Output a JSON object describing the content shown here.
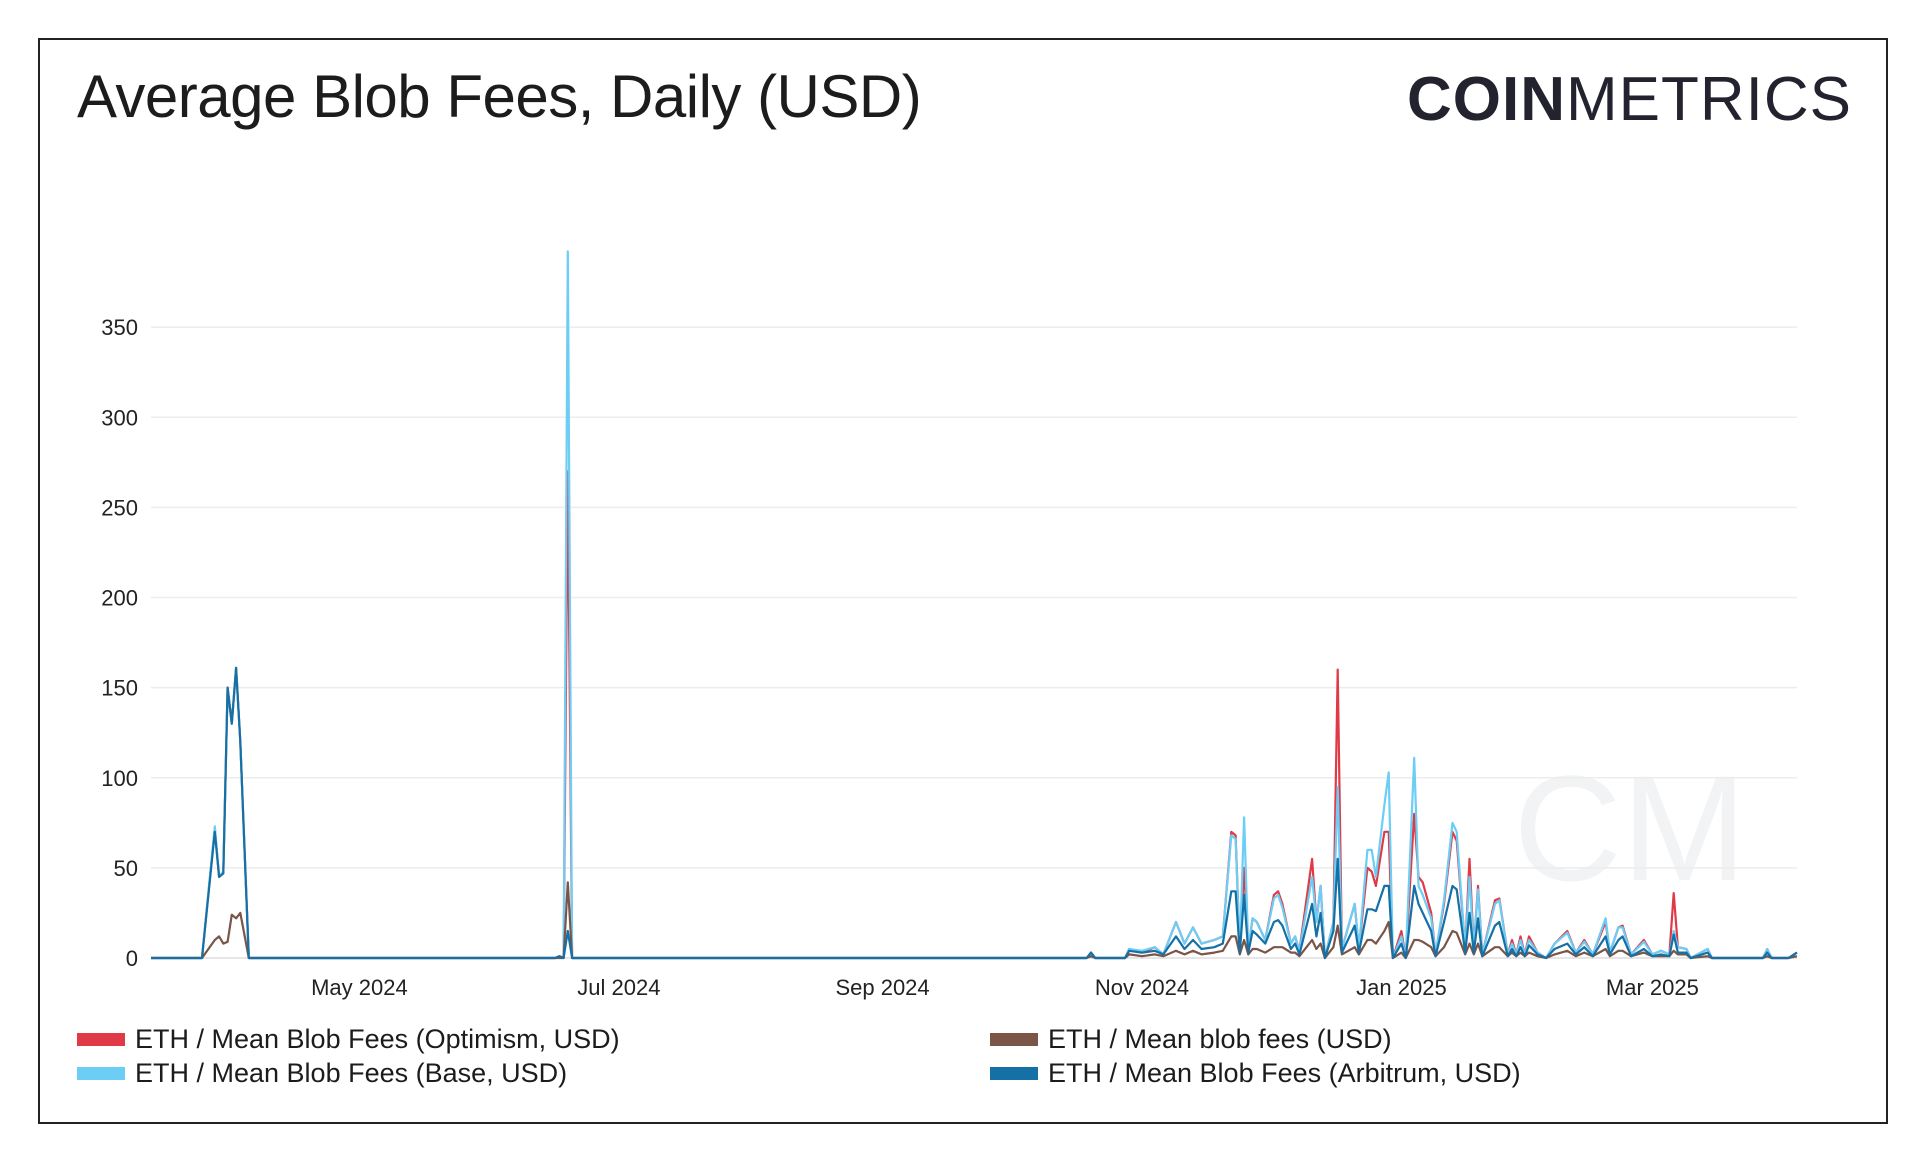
{
  "title": "Average Blob Fees, Daily (USD)",
  "logo": {
    "bold": "COIN",
    "light": "METRICS",
    "watermark": "CM"
  },
  "chart_data": {
    "type": "line",
    "title": "Average Blob Fees, Daily (USD)",
    "xlabel": "",
    "ylabel": "",
    "xlim": [
      "2024-03-13",
      "2025-04-04"
    ],
    "ylim": [
      0,
      400
    ],
    "yticks": [
      0,
      50,
      100,
      150,
      200,
      250,
      300,
      350
    ],
    "xticks": [
      {
        "date": "2024-05-01",
        "label": "May 2024"
      },
      {
        "date": "2024-07-01",
        "label": "Jul 2024"
      },
      {
        "date": "2024-09-01",
        "label": "Sep 2024"
      },
      {
        "date": "2024-11-01",
        "label": "Nov 2024"
      },
      {
        "date": "2025-01-01",
        "label": "Jan 2025"
      },
      {
        "date": "2025-03-01",
        "label": "Mar 2025"
      }
    ],
    "grid": true,
    "legend_position": "bottom",
    "x": [
      "2024-03-13",
      "2024-03-25",
      "2024-03-28",
      "2024-03-29",
      "2024-03-30",
      "2024-03-31",
      "2024-04-01",
      "2024-04-02",
      "2024-04-03",
      "2024-04-05",
      "2024-06-16",
      "2024-06-17",
      "2024-06-18",
      "2024-06-19",
      "2024-06-20",
      "2024-10-19",
      "2024-10-20",
      "2024-10-21",
      "2024-10-28",
      "2024-10-29",
      "2024-11-01",
      "2024-11-04",
      "2024-11-06",
      "2024-11-09",
      "2024-11-11",
      "2024-11-13",
      "2024-11-15",
      "2024-11-18",
      "2024-11-20",
      "2024-11-22",
      "2024-11-23",
      "2024-11-24",
      "2024-11-25",
      "2024-11-26",
      "2024-11-27",
      "2024-11-28",
      "2024-11-30",
      "2024-12-02",
      "2024-12-03",
      "2024-12-04",
      "2024-12-06",
      "2024-12-07",
      "2024-12-08",
      "2024-12-11",
      "2024-12-12",
      "2024-12-13",
      "2024-12-14",
      "2024-12-16",
      "2024-12-17",
      "2024-12-18",
      "2024-12-21",
      "2024-12-22",
      "2024-12-24",
      "2024-12-25",
      "2024-12-26",
      "2024-12-28",
      "2024-12-29",
      "2024-12-30",
      "2025-01-01",
      "2025-01-02",
      "2025-01-04",
      "2025-01-05",
      "2025-01-06",
      "2025-01-08",
      "2025-01-09",
      "2025-01-11",
      "2025-01-13",
      "2025-01-14",
      "2025-01-16",
      "2025-01-17",
      "2025-01-18",
      "2025-01-19",
      "2025-01-20",
      "2025-01-23",
      "2025-01-24",
      "2025-01-26",
      "2025-01-27",
      "2025-01-28",
      "2025-01-29",
      "2025-01-30",
      "2025-01-31",
      "2025-02-02",
      "2025-02-04",
      "2025-02-06",
      "2025-02-09",
      "2025-02-11",
      "2025-02-13",
      "2025-02-15",
      "2025-02-18",
      "2025-02-19",
      "2025-02-21",
      "2025-02-22",
      "2025-02-24",
      "2025-02-27",
      "2025-03-01",
      "2025-03-03",
      "2025-03-05",
      "2025-03-06",
      "2025-03-07",
      "2025-03-09",
      "2025-03-10",
      "2025-03-14",
      "2025-03-15",
      "2025-03-27",
      "2025-03-28",
      "2025-03-29",
      "2025-04-02",
      "2025-04-04"
    ],
    "series": [
      {
        "name": "ETH / Mean Blob Fees (Optimism, USD)",
        "color": "#e03a47",
        "values": [
          0,
          0,
          72,
          45,
          47,
          150,
          130,
          161,
          120,
          0,
          0,
          1,
          0,
          270,
          0,
          0,
          3,
          0,
          0,
          5,
          3,
          6,
          2,
          20,
          8,
          17,
          8,
          10,
          12,
          70,
          68,
          4,
          50,
          5,
          22,
          20,
          10,
          35,
          37,
          30,
          8,
          12,
          4,
          55,
          20,
          40,
          0,
          20,
          160,
          5,
          30,
          5,
          50,
          48,
          40,
          70,
          70,
          0,
          15,
          0,
          80,
          45,
          42,
          25,
          2,
          30,
          70,
          65,
          5,
          55,
          5,
          40,
          2,
          32,
          33,
          2,
          10,
          2,
          12,
          2,
          12,
          3,
          0,
          8,
          15,
          3,
          10,
          2,
          20,
          3,
          17,
          18,
          2,
          10,
          2,
          4,
          2,
          36,
          6,
          5,
          0,
          5,
          0,
          0,
          5,
          0,
          0,
          3
        ]
      },
      {
        "name": "ETH / Mean Blob Fees (Base, USD)",
        "color": "#6ccdf5",
        "values": [
          0,
          0,
          73,
          45,
          48,
          150,
          130,
          161,
          120,
          0,
          0,
          1,
          0,
          392,
          0,
          0,
          3,
          0,
          0,
          5,
          4,
          6,
          2,
          20,
          8,
          17,
          8,
          10,
          12,
          68,
          66,
          4,
          78,
          5,
          22,
          20,
          10,
          33,
          35,
          28,
          8,
          12,
          4,
          45,
          20,
          40,
          0,
          20,
          95,
          5,
          30,
          5,
          60,
          60,
          45,
          85,
          103,
          0,
          12,
          0,
          111,
          40,
          35,
          22,
          2,
          32,
          75,
          70,
          5,
          45,
          5,
          38,
          2,
          30,
          32,
          2,
          8,
          2,
          10,
          2,
          10,
          3,
          0,
          8,
          14,
          3,
          9,
          2,
          22,
          3,
          17,
          17,
          2,
          9,
          2,
          4,
          2,
          15,
          6,
          5,
          0,
          5,
          0,
          0,
          5,
          0,
          0,
          3
        ]
      },
      {
        "name": "ETH / Mean blob fees (USD)",
        "color": "#7a5548",
        "values": [
          0,
          0,
          10,
          12,
          8,
          9,
          24,
          22,
          25,
          0,
          0,
          0,
          0,
          42,
          0,
          0,
          1,
          0,
          0,
          2,
          1,
          2,
          1,
          4,
          2,
          4,
          2,
          3,
          4,
          12,
          12,
          2,
          10,
          2,
          5,
          5,
          3,
          6,
          6,
          6,
          3,
          3,
          1,
          10,
          5,
          8,
          0,
          6,
          18,
          2,
          6,
          2,
          10,
          10,
          8,
          15,
          20,
          0,
          3,
          0,
          10,
          10,
          9,
          6,
          1,
          6,
          15,
          14,
          2,
          8,
          2,
          8,
          1,
          6,
          6,
          1,
          3,
          1,
          3,
          1,
          3,
          1,
          0,
          2,
          4,
          1,
          3,
          1,
          5,
          1,
          4,
          4,
          1,
          3,
          1,
          1,
          1,
          4,
          2,
          2,
          0,
          1,
          0,
          0,
          1,
          0,
          0,
          1
        ]
      },
      {
        "name": "ETH / Mean Blob Fees (Arbitrum, USD)",
        "color": "#1470a5",
        "values": [
          0,
          0,
          70,
          45,
          47,
          150,
          130,
          161,
          120,
          0,
          0,
          1,
          0,
          15,
          0,
          0,
          3,
          0,
          0,
          4,
          3,
          4,
          2,
          12,
          5,
          10,
          5,
          6,
          8,
          37,
          37,
          3,
          35,
          3,
          15,
          13,
          8,
          20,
          21,
          18,
          5,
          8,
          2,
          30,
          12,
          25,
          0,
          15,
          55,
          3,
          18,
          3,
          27,
          27,
          26,
          40,
          40,
          0,
          8,
          0,
          40,
          30,
          25,
          15,
          1,
          20,
          40,
          38,
          3,
          25,
          3,
          22,
          1,
          18,
          20,
          1,
          5,
          1,
          6,
          1,
          7,
          2,
          0,
          5,
          8,
          2,
          6,
          1,
          12,
          2,
          10,
          12,
          1,
          5,
          1,
          2,
          1,
          13,
          3,
          3,
          0,
          3,
          0,
          0,
          3,
          0,
          0,
          3
        ]
      }
    ]
  }
}
